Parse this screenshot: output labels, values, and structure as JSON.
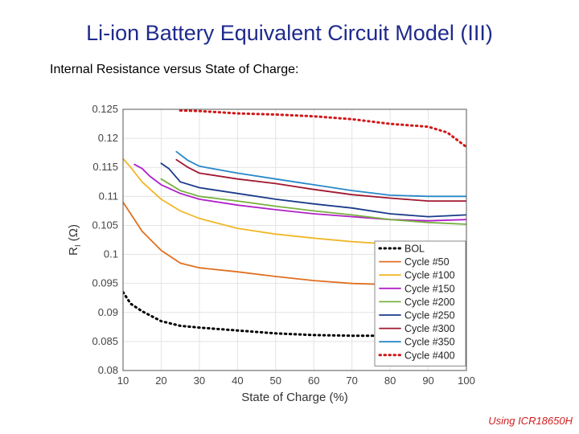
{
  "slide": {
    "title": "Li-ion Battery Equivalent Circuit Model (III)",
    "subtitle": "Internal Resistance versus State of Charge:",
    "footer_note": "Using ICR18650H"
  },
  "chart_data": {
    "type": "line",
    "xlabel": "State of Charge (%)",
    "ylabel": "R_I (Ω)",
    "xlim": [
      10,
      100
    ],
    "ylim": [
      0.08,
      0.125
    ],
    "xticks": [
      10,
      20,
      30,
      40,
      50,
      60,
      70,
      80,
      90,
      100
    ],
    "yticks": [
      0.08,
      0.085,
      0.09,
      0.095,
      0.1,
      0.105,
      0.11,
      0.115,
      0.12,
      0.125
    ],
    "grid": true,
    "legend_position": "bottom-right",
    "series": [
      {
        "name": "BOL",
        "color": "#000000",
        "style": "dotted",
        "x": [
          10,
          12,
          15,
          20,
          25,
          30,
          40,
          50,
          60,
          70,
          80,
          90,
          100
        ],
        "y": [
          0.0935,
          0.0915,
          0.0902,
          0.0885,
          0.0877,
          0.0874,
          0.0869,
          0.0864,
          0.0861,
          0.086,
          0.086,
          0.0861,
          0.0865
        ]
      },
      {
        "name": "Cycle #50",
        "color": "#e07020",
        "style": "solid",
        "x": [
          10,
          12,
          15,
          20,
          25,
          30,
          40,
          50,
          60,
          70,
          80,
          90,
          100
        ],
        "y": [
          0.109,
          0.107,
          0.104,
          0.1007,
          0.0985,
          0.0977,
          0.097,
          0.0962,
          0.0955,
          0.095,
          0.0948,
          0.0948,
          0.095
        ]
      },
      {
        "name": "Cycle #100",
        "color": "#f0b828",
        "style": "solid",
        "x": [
          10,
          12,
          15,
          20,
          25,
          30,
          40,
          50,
          60,
          70,
          80,
          90,
          100
        ],
        "y": [
          0.1165,
          0.115,
          0.1125,
          0.1095,
          0.1075,
          0.1062,
          0.1045,
          0.1035,
          0.1028,
          0.1022,
          0.1018,
          0.1018,
          0.1022
        ]
      },
      {
        "name": "Cycle #150",
        "color": "#b020c8",
        "style": "solid",
        "x": [
          13,
          15,
          17,
          20,
          25,
          30,
          40,
          50,
          60,
          70,
          80,
          90,
          100
        ],
        "y": [
          0.1155,
          0.1148,
          0.1135,
          0.112,
          0.1105,
          0.1095,
          0.1085,
          0.1077,
          0.107,
          0.1065,
          0.106,
          0.1058,
          0.106
        ]
      },
      {
        "name": "Cycle #200",
        "color": "#78b040",
        "style": "solid",
        "x": [
          20,
          25,
          30,
          40,
          50,
          60,
          70,
          80,
          90,
          100
        ],
        "y": [
          0.113,
          0.111,
          0.11,
          0.1092,
          0.1083,
          0.1075,
          0.1068,
          0.106,
          0.1055,
          0.1052
        ]
      },
      {
        "name": "Cycle #250",
        "color": "#1a3a8a",
        "style": "solid",
        "x": [
          20,
          22,
          25,
          30,
          40,
          50,
          60,
          70,
          80,
          90,
          100
        ],
        "y": [
          0.1157,
          0.1148,
          0.1125,
          0.1115,
          0.1105,
          0.1095,
          0.1087,
          0.108,
          0.107,
          0.1065,
          0.1068
        ]
      },
      {
        "name": "Cycle #300",
        "color": "#a01830",
        "style": "solid",
        "x": [
          24,
          27,
          30,
          40,
          50,
          60,
          70,
          80,
          90,
          100
        ],
        "y": [
          0.1163,
          0.115,
          0.114,
          0.113,
          0.1122,
          0.1112,
          0.1103,
          0.1097,
          0.1092,
          0.1092
        ]
      },
      {
        "name": "Cycle #350",
        "color": "#2888c8",
        "style": "solid",
        "x": [
          24,
          27,
          30,
          40,
          50,
          60,
          70,
          80,
          90,
          100
        ],
        "y": [
          0.1177,
          0.1162,
          0.1152,
          0.114,
          0.113,
          0.112,
          0.111,
          0.1102,
          0.11,
          0.11
        ]
      },
      {
        "name": "Cycle #400",
        "color": "#d01818",
        "style": "dotted",
        "x": [
          25,
          30,
          40,
          50,
          60,
          70,
          80,
          90,
          95,
          97,
          100
        ],
        "y": [
          0.1248,
          0.1247,
          0.1243,
          0.1241,
          0.1238,
          0.1233,
          0.1225,
          0.122,
          0.121,
          0.12,
          0.1185
        ]
      }
    ]
  }
}
